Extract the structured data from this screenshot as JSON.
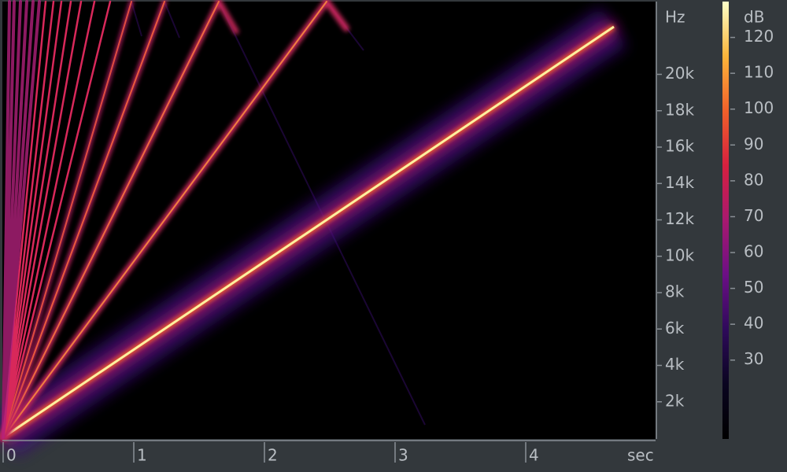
{
  "chart_data": {
    "type": "spectrogram",
    "xlabel": "sec",
    "ylabel": "Hz",
    "colorbar_label": "dB",
    "xlim": [
      0,
      5
    ],
    "xticks": [
      0,
      1,
      2,
      3,
      4
    ],
    "ylim": [
      0,
      24000
    ],
    "yticks": [
      {
        "value": 2000,
        "label": "2k"
      },
      {
        "value": 4000,
        "label": "4k"
      },
      {
        "value": 6000,
        "label": "6k"
      },
      {
        "value": 8000,
        "label": "8k"
      },
      {
        "value": 10000,
        "label": "10k"
      },
      {
        "value": 12000,
        "label": "12k"
      },
      {
        "value": 14000,
        "label": "14k"
      },
      {
        "value": 16000,
        "label": "16k"
      },
      {
        "value": 18000,
        "label": "18k"
      },
      {
        "value": 20000,
        "label": "20k"
      }
    ],
    "clim": [
      8,
      130
    ],
    "cticks": [
      30,
      40,
      50,
      60,
      70,
      80,
      90,
      100,
      110,
      120
    ],
    "colormap": [
      "#fcffc8",
      "#fbb43a",
      "#f0602a",
      "#d6203f",
      "#a8196f",
      "#6b0f85",
      "#2e0a5a",
      "#0a0520",
      "#000000"
    ]
  }
}
